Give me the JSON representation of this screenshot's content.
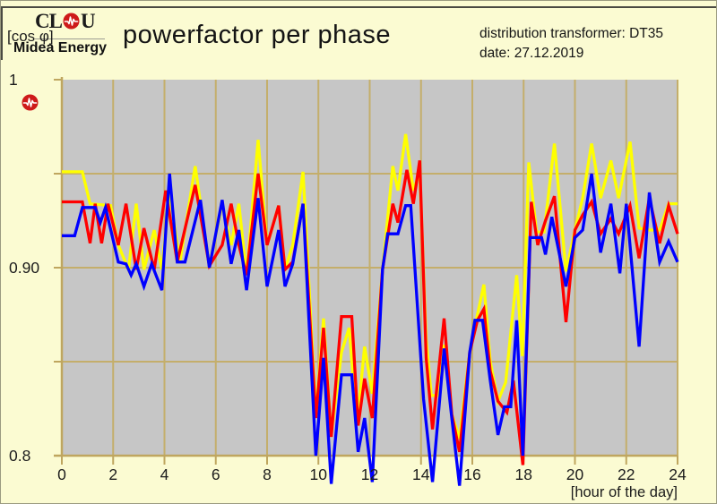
{
  "page": {
    "background": "#FBFBD2"
  },
  "header": {
    "logo": {
      "brand_prefix": "CL",
      "brand_suffix": "U",
      "subtitle": "Midea Energy"
    },
    "y_unit_label": "[cos φ]",
    "title": "powerfactor per phase",
    "info_line1": "distribution transformer: DT35",
    "info_line2": "date: 27.12.2019"
  },
  "chart_data": {
    "type": "line",
    "title": "powerfactor per phase",
    "xlabel": "[hour of the day]",
    "ylabel": "[cos φ]",
    "xlim": [
      0,
      24
    ],
    "ylim": [
      0.8,
      1.0
    ],
    "grid": true,
    "legend": "none",
    "x_ticks": [
      0,
      2,
      4,
      6,
      8,
      10,
      12,
      14,
      16,
      18,
      20,
      22,
      24
    ],
    "y_ticks": [
      1.0,
      0.95,
      0.9,
      0.85,
      0.8
    ],
    "y_tick_labels": [
      {
        "value": 1.0,
        "label": "1"
      },
      {
        "value": 0.9,
        "label": "0.90"
      },
      {
        "value": 0.8,
        "label": "0.8"
      }
    ],
    "colors": {
      "plot_background": "#C6C6C6",
      "grid_line": "#C4AE6B",
      "axis_line": "#BFA65F",
      "tick_label": "#1c1c1c"
    },
    "series": [
      {
        "name": "phase-yellow",
        "color": "#FFFF00",
        "points": [
          [
            0,
            0.951
          ],
          [
            0.8,
            0.951
          ],
          [
            1.1,
            0.934
          ],
          [
            1.9,
            0.933
          ],
          [
            2.2,
            0.912
          ],
          [
            2.6,
            0.899
          ],
          [
            2.9,
            0.934
          ],
          [
            3.2,
            0.899
          ],
          [
            3.6,
            0.92
          ],
          [
            3.9,
            0.899
          ],
          [
            4.2,
            0.94
          ],
          [
            4.6,
            0.903
          ],
          [
            5.2,
            0.954
          ],
          [
            5.75,
            0.901
          ],
          [
            6.25,
            0.934
          ],
          [
            6.6,
            0.912
          ],
          [
            6.9,
            0.934
          ],
          [
            7.2,
            0.896
          ],
          [
            7.65,
            0.968
          ],
          [
            8.0,
            0.912
          ],
          [
            8.45,
            0.933
          ],
          [
            8.7,
            0.899
          ],
          [
            9.0,
            0.912
          ],
          [
            9.4,
            0.951
          ],
          [
            9.9,
            0.822
          ],
          [
            10.2,
            0.873
          ],
          [
            10.5,
            0.811
          ],
          [
            10.9,
            0.855
          ],
          [
            11.2,
            0.868
          ],
          [
            11.5,
            0.816
          ],
          [
            11.8,
            0.858
          ],
          [
            12.1,
            0.833
          ],
          [
            12.5,
            0.899
          ],
          [
            12.9,
            0.954
          ],
          [
            13.1,
            0.941
          ],
          [
            13.4,
            0.971
          ],
          [
            13.7,
            0.941
          ],
          [
            13.95,
            0.951
          ],
          [
            14.2,
            0.862
          ],
          [
            14.4,
            0.832
          ],
          [
            14.7,
            0.832
          ],
          [
            14.9,
            0.859
          ],
          [
            15.2,
            0.822
          ],
          [
            15.5,
            0.809
          ],
          [
            15.9,
            0.855
          ],
          [
            16.2,
            0.875
          ],
          [
            16.45,
            0.891
          ],
          [
            16.7,
            0.85
          ],
          [
            17.0,
            0.829
          ],
          [
            17.3,
            0.839
          ],
          [
            17.73,
            0.896
          ],
          [
            17.95,
            0.853
          ],
          [
            18.2,
            0.956
          ],
          [
            18.5,
            0.919
          ],
          [
            18.8,
            0.919
          ],
          [
            19.2,
            0.966
          ],
          [
            19.65,
            0.898
          ],
          [
            20.0,
            0.92
          ],
          [
            20.3,
            0.937
          ],
          [
            20.65,
            0.966
          ],
          [
            21.0,
            0.937
          ],
          [
            21.4,
            0.957
          ],
          [
            21.7,
            0.937
          ],
          [
            22.15,
            0.967
          ],
          [
            22.5,
            0.921
          ],
          [
            22.9,
            0.92
          ],
          [
            23.3,
            0.92
          ],
          [
            23.65,
            0.934
          ],
          [
            24,
            0.934
          ]
        ]
      },
      {
        "name": "phase-red",
        "color": "#FF0000",
        "points": [
          [
            0,
            0.935
          ],
          [
            0.8,
            0.935
          ],
          [
            1.1,
            0.913
          ],
          [
            1.3,
            0.934
          ],
          [
            1.55,
            0.913
          ],
          [
            1.8,
            0.934
          ],
          [
            2.2,
            0.912
          ],
          [
            2.5,
            0.934
          ],
          [
            2.9,
            0.899
          ],
          [
            3.2,
            0.921
          ],
          [
            3.6,
            0.899
          ],
          [
            4.05,
            0.941
          ],
          [
            4.5,
            0.903
          ],
          [
            5.2,
            0.944
          ],
          [
            5.75,
            0.901
          ],
          [
            6.25,
            0.912
          ],
          [
            6.6,
            0.934
          ],
          [
            6.9,
            0.912
          ],
          [
            7.2,
            0.896
          ],
          [
            7.65,
            0.95
          ],
          [
            8.0,
            0.912
          ],
          [
            8.45,
            0.933
          ],
          [
            8.7,
            0.899
          ],
          [
            9.0,
            0.903
          ],
          [
            9.4,
            0.934
          ],
          [
            9.9,
            0.82
          ],
          [
            10.2,
            0.868
          ],
          [
            10.5,
            0.81
          ],
          [
            10.9,
            0.874
          ],
          [
            11.3,
            0.874
          ],
          [
            11.55,
            0.816
          ],
          [
            11.8,
            0.841
          ],
          [
            12.1,
            0.82
          ],
          [
            12.5,
            0.899
          ],
          [
            12.9,
            0.934
          ],
          [
            13.1,
            0.924
          ],
          [
            13.45,
            0.952
          ],
          [
            13.7,
            0.934
          ],
          [
            13.95,
            0.957
          ],
          [
            14.2,
            0.852
          ],
          [
            14.45,
            0.814
          ],
          [
            14.9,
            0.873
          ],
          [
            15.2,
            0.822
          ],
          [
            15.5,
            0.802
          ],
          [
            15.9,
            0.855
          ],
          [
            16.2,
            0.872
          ],
          [
            16.45,
            0.878
          ],
          [
            16.7,
            0.845
          ],
          [
            17.0,
            0.829
          ],
          [
            17.35,
            0.823
          ],
          [
            17.6,
            0.84
          ],
          [
            17.97,
            0.795
          ],
          [
            18.3,
            0.935
          ],
          [
            18.55,
            0.912
          ],
          [
            18.85,
            0.925
          ],
          [
            19.2,
            0.938
          ],
          [
            19.65,
            0.871
          ],
          [
            20.0,
            0.92
          ],
          [
            20.3,
            0.928
          ],
          [
            20.65,
            0.935
          ],
          [
            21.0,
            0.918
          ],
          [
            21.4,
            0.926
          ],
          [
            21.7,
            0.918
          ],
          [
            22.15,
            0.933
          ],
          [
            22.5,
            0.905
          ],
          [
            22.9,
            0.937
          ],
          [
            23.3,
            0.913
          ],
          [
            23.65,
            0.933
          ],
          [
            24,
            0.918
          ]
        ]
      },
      {
        "name": "phase-blue",
        "color": "#0000FF",
        "points": [
          [
            0,
            0.917
          ],
          [
            0.5,
            0.917
          ],
          [
            0.8,
            0.932
          ],
          [
            1.3,
            0.932
          ],
          [
            1.5,
            0.924
          ],
          [
            1.7,
            0.932
          ],
          [
            2.2,
            0.903
          ],
          [
            2.5,
            0.902
          ],
          [
            2.7,
            0.896
          ],
          [
            2.9,
            0.902
          ],
          [
            3.2,
            0.89
          ],
          [
            3.5,
            0.902
          ],
          [
            3.9,
            0.888
          ],
          [
            4.2,
            0.95
          ],
          [
            4.5,
            0.903
          ],
          [
            4.8,
            0.903
          ],
          [
            5.4,
            0.936
          ],
          [
            5.75,
            0.9
          ],
          [
            6.25,
            0.936
          ],
          [
            6.6,
            0.902
          ],
          [
            6.9,
            0.92
          ],
          [
            7.2,
            0.888
          ],
          [
            7.65,
            0.937
          ],
          [
            8.0,
            0.89
          ],
          [
            8.45,
            0.92
          ],
          [
            8.7,
            0.89
          ],
          [
            9.0,
            0.902
          ],
          [
            9.4,
            0.934
          ],
          [
            9.9,
            0.8
          ],
          [
            10.2,
            0.852
          ],
          [
            10.5,
            0.785
          ],
          [
            10.9,
            0.843
          ],
          [
            11.3,
            0.843
          ],
          [
            11.55,
            0.802
          ],
          [
            11.8,
            0.82
          ],
          [
            12.1,
            0.786
          ],
          [
            12.5,
            0.899
          ],
          [
            12.7,
            0.918
          ],
          [
            13.1,
            0.918
          ],
          [
            13.4,
            0.933
          ],
          [
            13.6,
            0.933
          ],
          [
            14.1,
            0.83
          ],
          [
            14.45,
            0.786
          ],
          [
            14.9,
            0.857
          ],
          [
            15.2,
            0.82
          ],
          [
            15.5,
            0.784
          ],
          [
            15.9,
            0.855
          ],
          [
            16.1,
            0.872
          ],
          [
            16.4,
            0.872
          ],
          [
            16.7,
            0.84
          ],
          [
            17.0,
            0.811
          ],
          [
            17.25,
            0.826
          ],
          [
            17.5,
            0.826
          ],
          [
            17.73,
            0.872
          ],
          [
            17.97,
            0.8
          ],
          [
            18.25,
            0.916
          ],
          [
            18.7,
            0.916
          ],
          [
            18.85,
            0.907
          ],
          [
            19.1,
            0.927
          ],
          [
            19.65,
            0.89
          ],
          [
            20.0,
            0.916
          ],
          [
            20.3,
            0.92
          ],
          [
            20.65,
            0.95
          ],
          [
            21.0,
            0.908
          ],
          [
            21.4,
            0.934
          ],
          [
            21.75,
            0.897
          ],
          [
            22.0,
            0.934
          ],
          [
            22.5,
            0.858
          ],
          [
            22.9,
            0.94
          ],
          [
            23.3,
            0.903
          ],
          [
            23.65,
            0.914
          ],
          [
            24,
            0.903
          ]
        ]
      }
    ]
  }
}
